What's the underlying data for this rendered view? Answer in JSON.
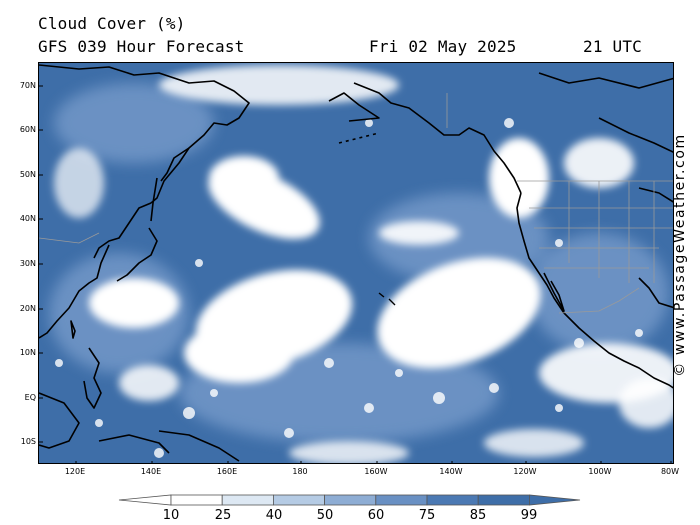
{
  "header": {
    "title": "Cloud Cover (%)",
    "subtitle": "GFS 039 Hour Forecast",
    "date": "Fri 02 May 2025",
    "time": "21 UTC"
  },
  "map": {
    "ocean_color": "#3e6ea8",
    "land_color": "#3e6ea8",
    "coast_color": "#000000",
    "lat_labels": [
      "70N",
      "60N",
      "50N",
      "40N",
      "30N",
      "20N",
      "10N",
      "EQ",
      "10S"
    ],
    "lon_labels": [
      "120E",
      "140E",
      "160E",
      "180",
      "160W",
      "140W",
      "120W",
      "100W",
      "80W"
    ]
  },
  "colorbar": {
    "labels": [
      "10",
      "25",
      "40",
      "50",
      "60",
      "75",
      "85",
      "99"
    ],
    "colors": [
      "#ffffff",
      "#ffffff",
      "#dde8f3",
      "#b5cbe4",
      "#8eadd4",
      "#6990c3",
      "#4b79b3",
      "#3e6ea8",
      "#3e6ea8"
    ]
  },
  "watermark": "© www.PassageWeather.com"
}
